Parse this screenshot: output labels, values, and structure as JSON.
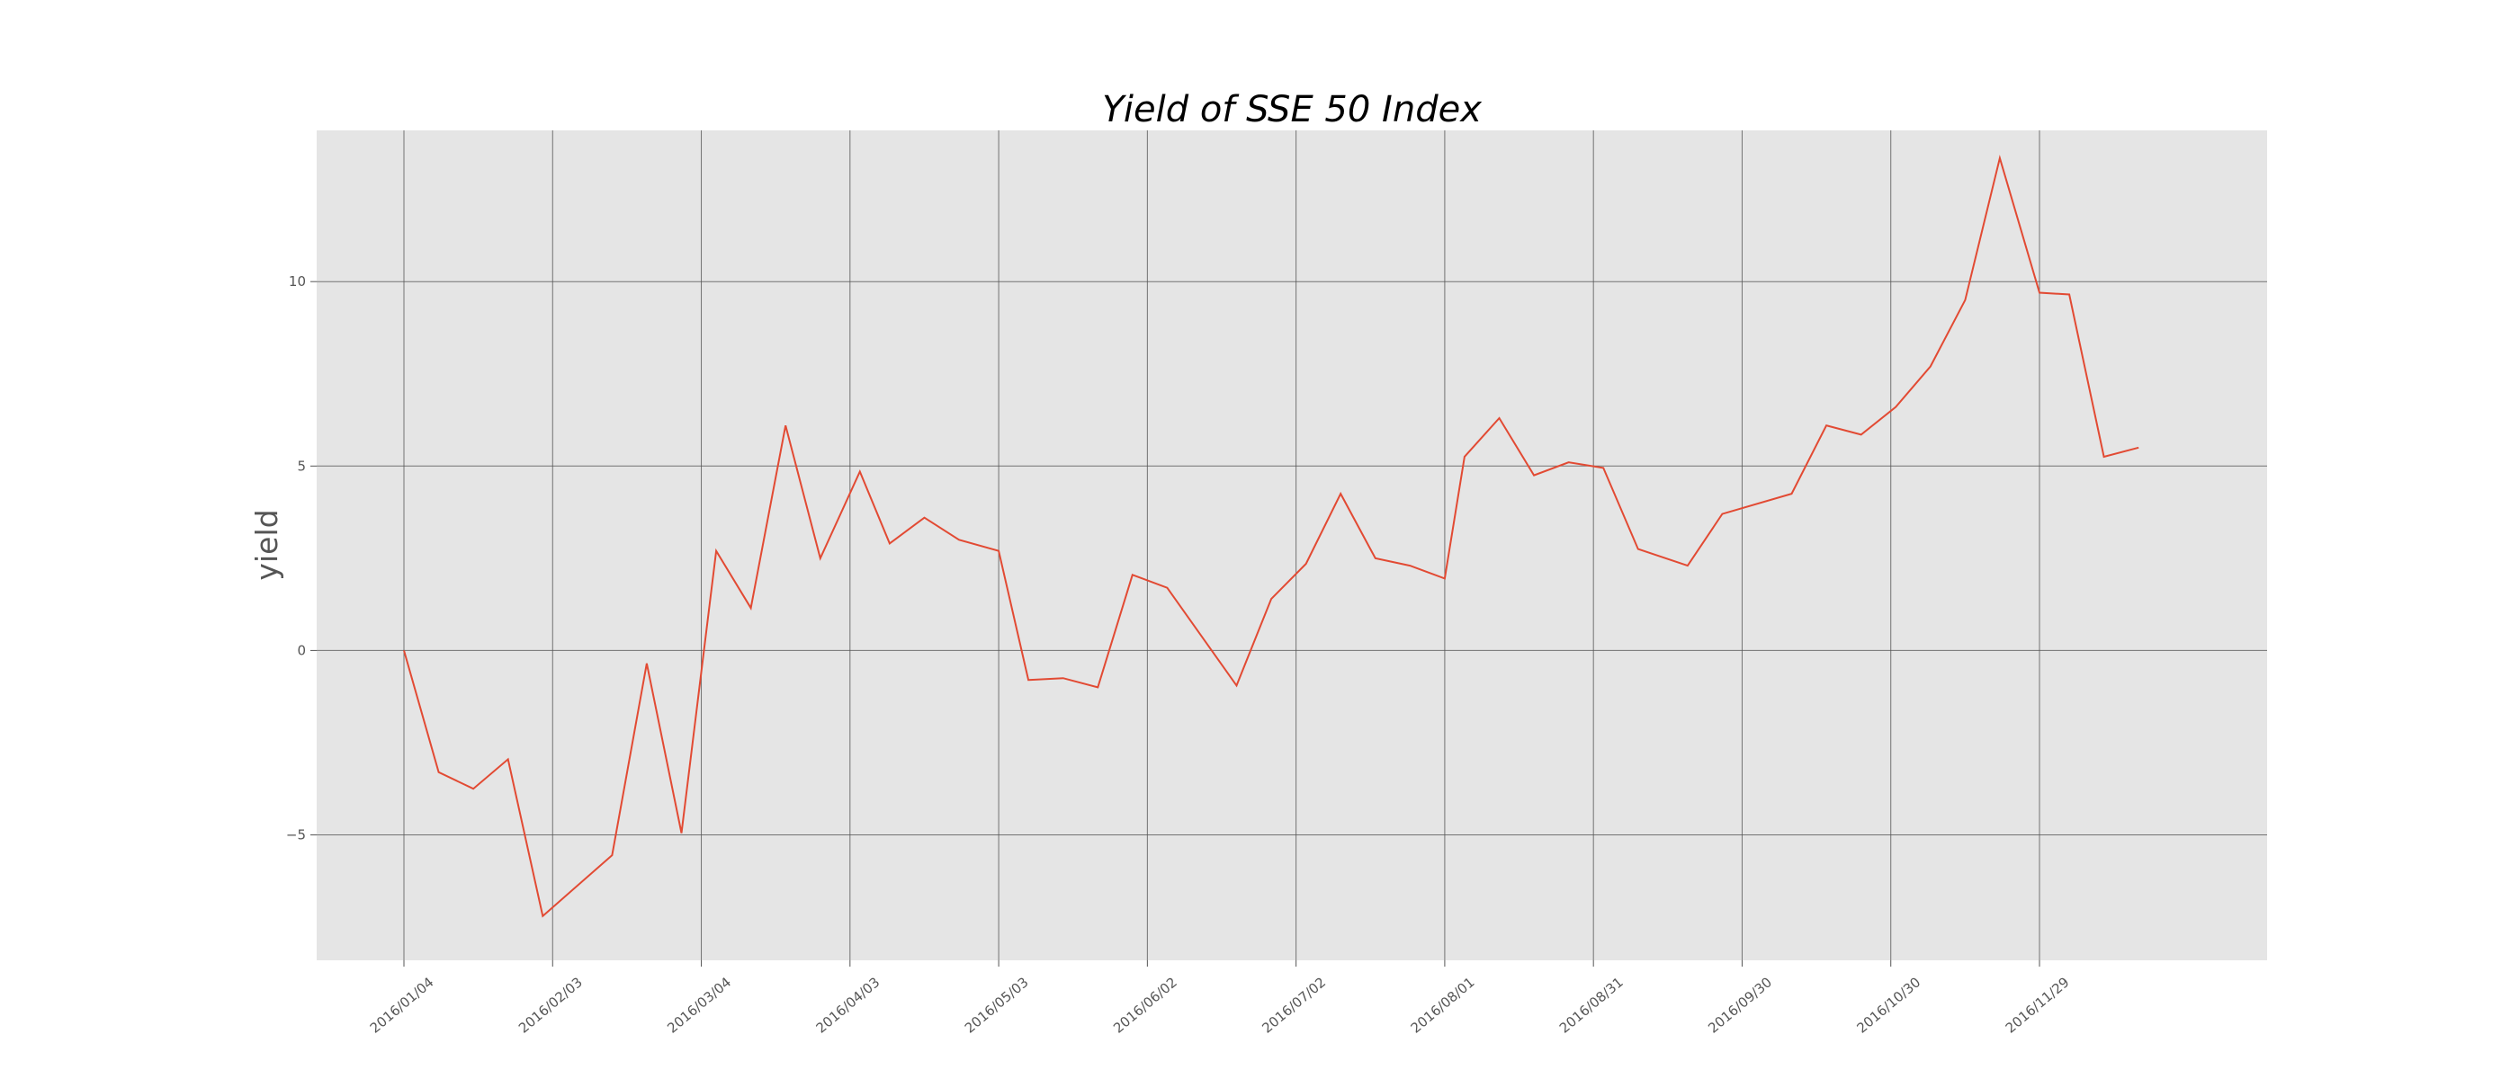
{
  "chart_data": {
    "type": "line",
    "title": "Yield of SSE 50 Index",
    "xlabel": "",
    "ylabel": "yield",
    "ylim": [
      -8.4,
      14.1
    ],
    "grid": true,
    "colors": {
      "line": "#e24a33",
      "plot_bg": "#e5e5e5",
      "grid": "#555555"
    },
    "x_ticks": [
      "2016/01/04",
      "2016/02/03",
      "2016/03/04",
      "2016/04/03",
      "2016/05/03",
      "2016/06/02",
      "2016/07/02",
      "2016/08/01",
      "2016/08/31",
      "2016/09/30",
      "2016/10/30",
      "2016/11/29"
    ],
    "y_ticks": [
      -5,
      0,
      5,
      10
    ],
    "y_tick_labels": [
      "−5",
      "0",
      "5",
      "10"
    ],
    "series": [
      {
        "x": [
          "2016/01/04",
          "2016/01/11",
          "2016/01/18",
          "2016/01/25",
          "2016/02/01",
          "2016/02/15",
          "2016/02/22",
          "2016/02/29",
          "2016/03/07",
          "2016/03/14",
          "2016/03/21",
          "2016/03/28",
          "2016/04/05",
          "2016/04/11",
          "2016/04/18",
          "2016/04/25",
          "2016/05/03",
          "2016/05/09",
          "2016/05/16",
          "2016/05/23",
          "2016/05/30",
          "2016/06/06",
          "2016/06/20",
          "2016/06/27",
          "2016/07/04",
          "2016/07/11",
          "2016/07/18",
          "2016/07/25",
          "2016/08/01",
          "2016/08/05",
          "2016/08/12",
          "2016/08/19",
          "2016/08/26",
          "2016/09/02",
          "2016/09/09",
          "2016/09/19",
          "2016/09/26",
          "2016/10/10",
          "2016/10/17",
          "2016/10/24",
          "2016/10/31",
          "2016/11/07",
          "2016/11/14",
          "2016/11/21",
          "2016/11/29",
          "2016/12/05",
          "2016/12/12",
          "2016/12/19",
          "2016/12/26"
        ],
        "values": [
          0.0,
          -3.3,
          -3.75,
          -2.95,
          -7.2,
          -5.55,
          -0.35,
          -4.95,
          2.7,
          1.15,
          6.1,
          2.5,
          4.85,
          2.9,
          3.6,
          3.0,
          2.7,
          -0.8,
          -0.75,
          -1.0,
          2.05,
          1.7,
          -0.95,
          1.4,
          2.35,
          4.25,
          2.5,
          2.3,
          1.95,
          5.25,
          6.3,
          4.75,
          5.1,
          4.95,
          2.75,
          2.3,
          3.7,
          4.25,
          6.1,
          5.85,
          6.6,
          7.7,
          9.5,
          13.35,
          9.7,
          9.65,
          5.25,
          5.5,
          null
        ]
      }
    ]
  }
}
